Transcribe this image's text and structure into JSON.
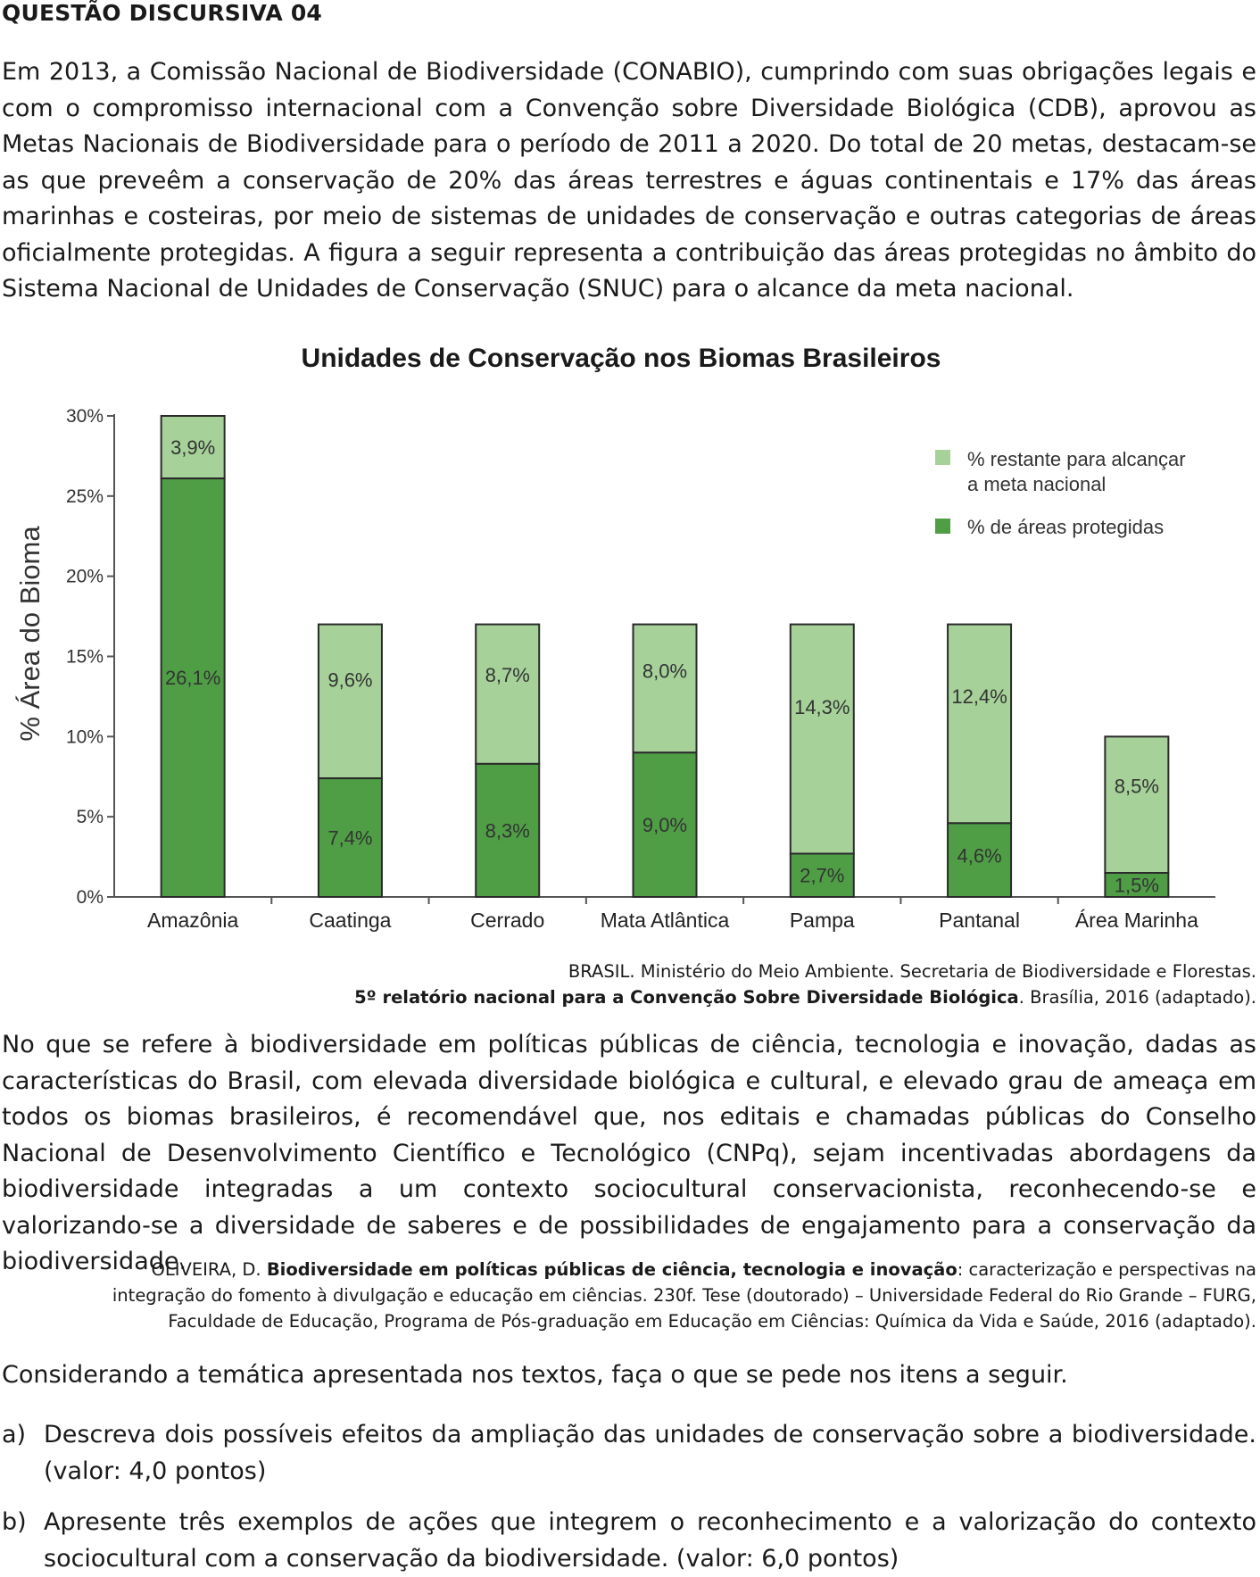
{
  "heading": "QUESTÃO DISCURSIVA 04",
  "intro": "Em 2013, a Comissão Nacional de Biodiversidade (CONABIO), cumprindo com suas obrigações legais e com o compromisso internacional com a Convenção sobre Diversidade Biológica (CDB), aprovou as Metas Nacionais de Biodiversidade para o período de 2011 a 2020. Do total de 20 metas, destacam-se as que preveêm a conservação de 20% das áreas terrestres e águas continentais e 17% das áreas marinhas e costeiras, por meio de sistemas de unidades de conservação e outras categorias de áreas oficialmente protegidas. A figura a seguir representa a contribuição das áreas protegidas no âmbito do Sistema Nacional de Unidades de Conservação (SNUC) para o alcance da meta nacional.",
  "chart_data": {
    "type": "bar",
    "stacked": true,
    "title": "Unidades de Conservação nos Biomas Brasileiros",
    "ylabel": "% Área do Bioma",
    "xlabel": "",
    "ylim": [
      0,
      30
    ],
    "yticks": [
      "0%",
      "5%",
      "10%",
      "15%",
      "20%",
      "25%",
      "30%"
    ],
    "categories": [
      "Amazônia",
      "Caatinga",
      "Cerrado",
      "Mata Atlântica",
      "Pampa",
      "Pantanal",
      "Área Marinha"
    ],
    "series": [
      {
        "name": "% de áreas protegidas",
        "color": "#4f9e46",
        "values": [
          26.1,
          7.4,
          8.3,
          9.0,
          2.7,
          4.6,
          1.5
        ],
        "labels": [
          "26,1%",
          "7,4%",
          "8,3%",
          "9,0%",
          "2,7%",
          "4,6%",
          "1,5%"
        ]
      },
      {
        "name": "% restante para alcançar a meta nacional",
        "color": "#a6d29a",
        "values": [
          3.9,
          9.6,
          8.7,
          8.0,
          14.3,
          12.4,
          8.5
        ],
        "labels": [
          "3,9%",
          "9,6%",
          "8,7%",
          "8,0%",
          "14,3%",
          "12,4%",
          "8,5%"
        ]
      }
    ],
    "legend": [
      "% restante para alcançar a meta nacional",
      "% de áreas protegidas"
    ],
    "legend_lines": [
      [
        "% restante para alcançar",
        "a meta nacional"
      ],
      [
        "% de áreas protegidas"
      ]
    ],
    "legend_position": "top-right",
    "grid": false
  },
  "source1": {
    "line1": "BRASIL. Ministério do Meio Ambiente. Secretaria de Biodiversidade e Florestas.",
    "bold": "5º relatório nacional para a Convenção Sobre Diversidade Biológica",
    "rest": ". Brasília, 2016 (adaptado)."
  },
  "body2": "No que se refere à biodiversidade em políticas públicas de ciência, tecnologia e inovação, dadas as características do Brasil, com elevada diversidade biológica e cultural, e elevado grau de ameaça em todos os biomas brasileiros, é recomendável que, nos editais e chamadas públicas do Conselho Nacional de Desenvolvimento Científico e Tecnológico (CNPq), sejam incentivadas abordagens da biodiversidade integradas a um contexto sociocultural conservacionista, reconhecendo-se e valorizando-se a diversidade de saberes e de possibilidades de engajamento para a conservação da biodiversidade.",
  "source2": {
    "author": "OLIVEIRA, D. ",
    "bold": "Biodiversidade em políticas públicas de ciência, tecnologia e inovação",
    "rest": ": caracterização e perspectivas na integração do fomento à divulgação e educação em ciências. 230f. Tese (doutorado) – Universidade Federal do Rio Grande – FURG, Faculdade de Educação, Programa de Pós-graduação em Educação em Ciências: Química da Vida e Saúde, 2016 (adaptado)."
  },
  "prompt": "Considerando a temática apresentada nos textos, faça o que se pede nos itens a seguir.",
  "items": [
    {
      "mark": "a)",
      "text": "Descreva dois possíveis efeitos da ampliação das unidades de conservação sobre a biodiversidade. (valor: 4,0 pontos)"
    },
    {
      "mark": "b)",
      "text": "Apresente três exemplos de ações que integrem o reconhecimento e a valorização do contexto sociocultural com a conservação da biodiversidade. (valor: 6,0 pontos)"
    }
  ]
}
